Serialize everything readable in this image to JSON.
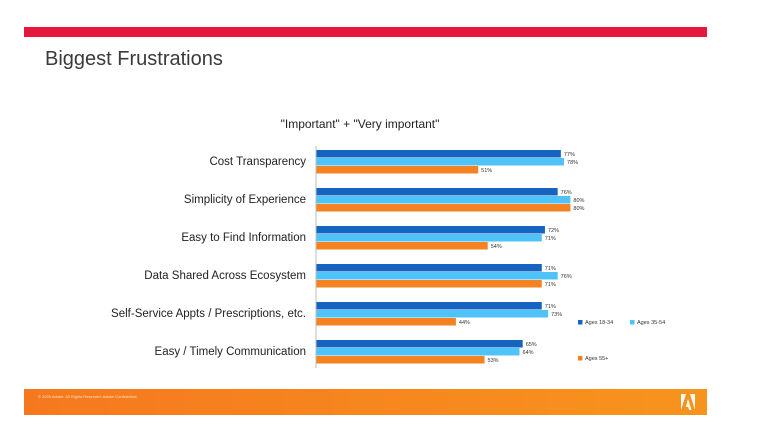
{
  "slide": {
    "title": "Biggest Frustrations",
    "footer_text": "© 2020 Adobe. All Rights Reserved. Adobe Confidential.",
    "logo_name": "adobe-logo-icon",
    "colors": {
      "accent_bar": "#e5173f",
      "footer": "#f7941d"
    }
  },
  "chart_data": {
    "type": "bar",
    "orientation": "horizontal",
    "title": "\"Important\" + \"Very important\"",
    "xlabel": "",
    "ylabel": "",
    "xlim": [
      0,
      100
    ],
    "grid": false,
    "legend_position": "right",
    "value_format": "percent",
    "categories": [
      "Cost Transparency",
      "Simplicity of Experience",
      "Easy to Find Information",
      "Data Shared Across Ecosystem",
      "Self-Service Appts / Prescriptions, etc.",
      "Easy / Timely Communication"
    ],
    "series": [
      {
        "name": "Ages 18-34",
        "color": "#1565c0",
        "values": [
          77,
          76,
          72,
          71,
          71,
          65
        ]
      },
      {
        "name": "Ages 35-54",
        "color": "#4fc3f7",
        "values": [
          78,
          80,
          71,
          76,
          73,
          64
        ]
      },
      {
        "name": "Ages 55+",
        "color": "#f58220",
        "values": [
          51,
          80,
          54,
          71,
          44,
          53
        ]
      }
    ]
  }
}
